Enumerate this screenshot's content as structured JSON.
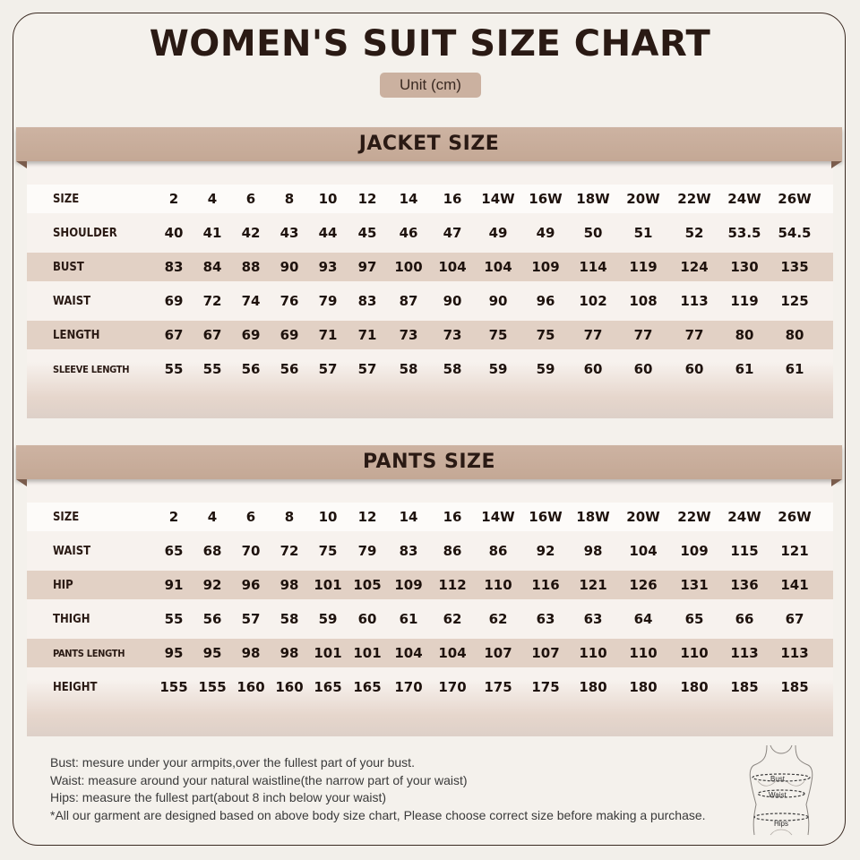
{
  "title": "WOMEN'S SUIT SIZE CHART",
  "unit": "Unit (cm)",
  "jacket": {
    "heading": "JACKET SIZE",
    "rows": [
      {
        "label": "SIZE",
        "values": [
          "2",
          "4",
          "6",
          "8",
          "10",
          "12",
          "14",
          "16",
          "14W",
          "16W",
          "18W",
          "20W",
          "22W",
          "24W",
          "26W"
        ]
      },
      {
        "label": "SHOULDER",
        "values": [
          "40",
          "41",
          "42",
          "43",
          "44",
          "45",
          "46",
          "47",
          "49",
          "49",
          "50",
          "51",
          "52",
          "53.5",
          "54.5"
        ]
      },
      {
        "label": "BUST",
        "values": [
          "83",
          "84",
          "88",
          "90",
          "93",
          "97",
          "100",
          "104",
          "104",
          "109",
          "114",
          "119",
          "124",
          "130",
          "135"
        ]
      },
      {
        "label": "WAIST",
        "values": [
          "69",
          "72",
          "74",
          "76",
          "79",
          "83",
          "87",
          "90",
          "90",
          "96",
          "102",
          "108",
          "113",
          "119",
          "125"
        ]
      },
      {
        "label": "LENGTH",
        "values": [
          "67",
          "67",
          "69",
          "69",
          "71",
          "71",
          "73",
          "73",
          "75",
          "75",
          "77",
          "77",
          "77",
          "80",
          "80"
        ]
      },
      {
        "label": "SLEEVE LENGTH",
        "values": [
          "55",
          "55",
          "56",
          "56",
          "57",
          "57",
          "58",
          "58",
          "59",
          "59",
          "60",
          "60",
          "60",
          "61",
          "61"
        ]
      }
    ]
  },
  "pants": {
    "heading": "PANTS SIZE",
    "rows": [
      {
        "label": "SIZE",
        "values": [
          "2",
          "4",
          "6",
          "8",
          "10",
          "12",
          "14",
          "16",
          "14W",
          "16W",
          "18W",
          "20W",
          "22W",
          "24W",
          "26W"
        ]
      },
      {
        "label": "WAIST",
        "values": [
          "65",
          "68",
          "70",
          "72",
          "75",
          "79",
          "83",
          "86",
          "86",
          "92",
          "98",
          "104",
          "109",
          "115",
          "121"
        ]
      },
      {
        "label": "HIP",
        "values": [
          "91",
          "92",
          "96",
          "98",
          "101",
          "105",
          "109",
          "112",
          "110",
          "116",
          "121",
          "126",
          "131",
          "136",
          "141"
        ]
      },
      {
        "label": "THIGH",
        "values": [
          "55",
          "56",
          "57",
          "58",
          "59",
          "60",
          "61",
          "62",
          "62",
          "63",
          "63",
          "64",
          "65",
          "66",
          "67"
        ]
      },
      {
        "label": "PANTS LENGTH",
        "values": [
          "95",
          "95",
          "98",
          "98",
          "101",
          "101",
          "104",
          "104",
          "107",
          "107",
          "110",
          "110",
          "110",
          "113",
          "113"
        ]
      },
      {
        "label": "HEIGHT",
        "values": [
          "155",
          "155",
          "160",
          "160",
          "165",
          "165",
          "170",
          "170",
          "175",
          "175",
          "180",
          "180",
          "180",
          "185",
          "185"
        ]
      }
    ]
  },
  "notes": [
    "Bust: mesure under your armpits,over the fullest part of your bust.",
    "Waist: measure around your natural waistline(the narrow part of your waist)",
    "Hips: measure the fullest part(about 8 inch below your waist)",
    "*All our garment are designed based on above body size chart, Please choose correct size before making a purchase."
  ],
  "figure": {
    "icon": "body-measurement-icon",
    "labels": [
      "Bust",
      "Waist",
      "Hips"
    ]
  },
  "colors": {
    "banner": "#c8ad9b",
    "shaded_row": "#e2d1c5",
    "text": "#2a1a14",
    "background": "#f2efea"
  }
}
